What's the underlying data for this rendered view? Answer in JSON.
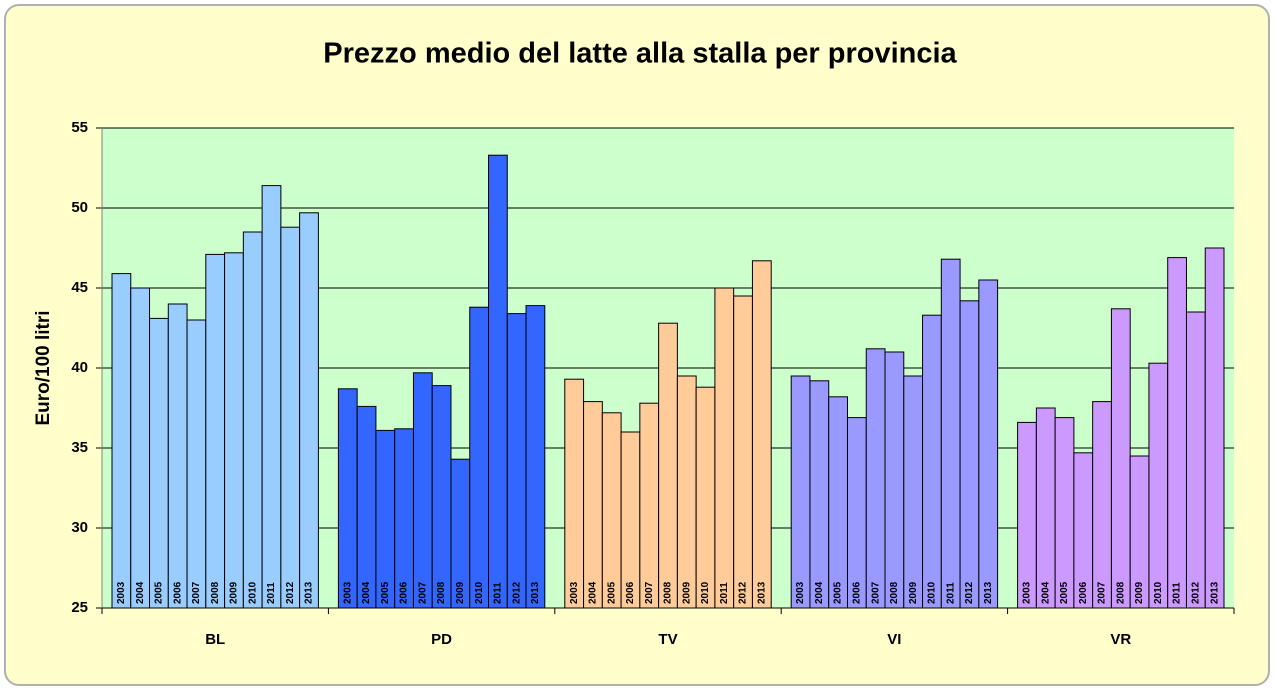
{
  "chart_data": {
    "type": "bar",
    "title": "Prezzo medio del latte alla stalla per provincia",
    "y_label": "Euro/100 litri",
    "categories": [
      "BL",
      "PD",
      "TV",
      "VI",
      "VR"
    ],
    "category_colors": [
      "#99ccff",
      "#3366ff",
      "#ffcc99",
      "#9999ff",
      "#cc99ff"
    ],
    "series": [
      {
        "name": "2003",
        "values": [
          45.9,
          38.7,
          39.3,
          39.5,
          36.6
        ]
      },
      {
        "name": "2004",
        "values": [
          45.0,
          37.6,
          37.9,
          39.2,
          37.5
        ]
      },
      {
        "name": "2005",
        "values": [
          43.1,
          36.1,
          37.2,
          38.2,
          36.9
        ]
      },
      {
        "name": "2006",
        "values": [
          44.0,
          36.2,
          36.0,
          36.9,
          34.7
        ]
      },
      {
        "name": "2007",
        "values": [
          43.0,
          39.7,
          37.8,
          41.2,
          37.9
        ]
      },
      {
        "name": "2008",
        "values": [
          47.1,
          38.9,
          42.8,
          41.0,
          43.7
        ]
      },
      {
        "name": "2009",
        "values": [
          47.2,
          34.3,
          39.5,
          39.5,
          34.5
        ]
      },
      {
        "name": "2010",
        "values": [
          48.5,
          43.8,
          38.8,
          43.3,
          40.3
        ]
      },
      {
        "name": "2011",
        "values": [
          51.4,
          53.3,
          45.0,
          46.8,
          46.9
        ]
      },
      {
        "name": "2012",
        "values": [
          48.8,
          43.4,
          44.5,
          44.2,
          43.5
        ]
      },
      {
        "name": "2013",
        "values": [
          49.7,
          43.9,
          46.7,
          45.5,
          47.5
        ]
      }
    ],
    "ylim": [
      25,
      55
    ],
    "yticks": [
      25,
      30,
      35,
      40,
      45,
      50,
      55
    ],
    "grid": true
  }
}
